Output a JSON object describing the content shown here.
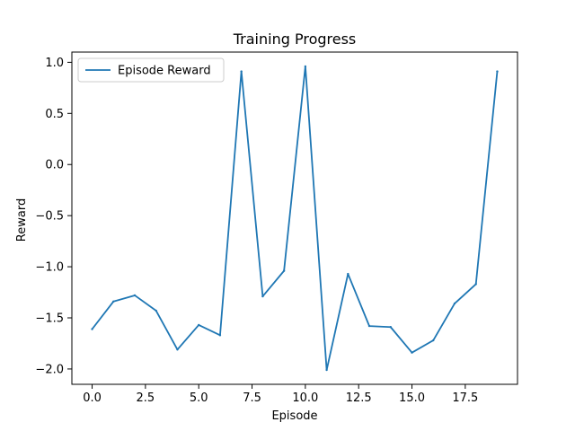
{
  "chart_data": {
    "type": "line",
    "title": "Training Progress",
    "xlabel": "Episode",
    "ylabel": "Reward",
    "xlim": [
      -0.95,
      19.95
    ],
    "ylim": [
      -2.15,
      1.1
    ],
    "grid": false,
    "legend_position": "top-left",
    "x_ticks": [
      0.0,
      2.5,
      5.0,
      7.5,
      10.0,
      12.5,
      15.0,
      17.5
    ],
    "x_tick_labels": [
      "0.0",
      "2.5",
      "5.0",
      "7.5",
      "10.0",
      "12.5",
      "15.0",
      "17.5"
    ],
    "y_ticks": [
      -2.0,
      -1.5,
      -1.0,
      -0.5,
      0.0,
      0.5,
      1.0
    ],
    "y_tick_labels": [
      "−2.0",
      "−1.5",
      "−1.0",
      "−0.5",
      "0.0",
      "0.5",
      "1.0"
    ],
    "series": [
      {
        "name": "Episode Reward",
        "color": "#1f77b4",
        "x": [
          0,
          1,
          2,
          3,
          4,
          5,
          6,
          7,
          8,
          9,
          10,
          11,
          12,
          13,
          14,
          15,
          16,
          17,
          18,
          19
        ],
        "values": [
          -1.61,
          -1.34,
          -1.28,
          -1.43,
          -1.81,
          -1.57,
          -1.67,
          0.91,
          -1.29,
          -1.04,
          0.96,
          -2.01,
          -1.07,
          -1.58,
          -1.59,
          -1.84,
          -1.72,
          -1.36,
          -1.17,
          0.91
        ]
      }
    ]
  }
}
